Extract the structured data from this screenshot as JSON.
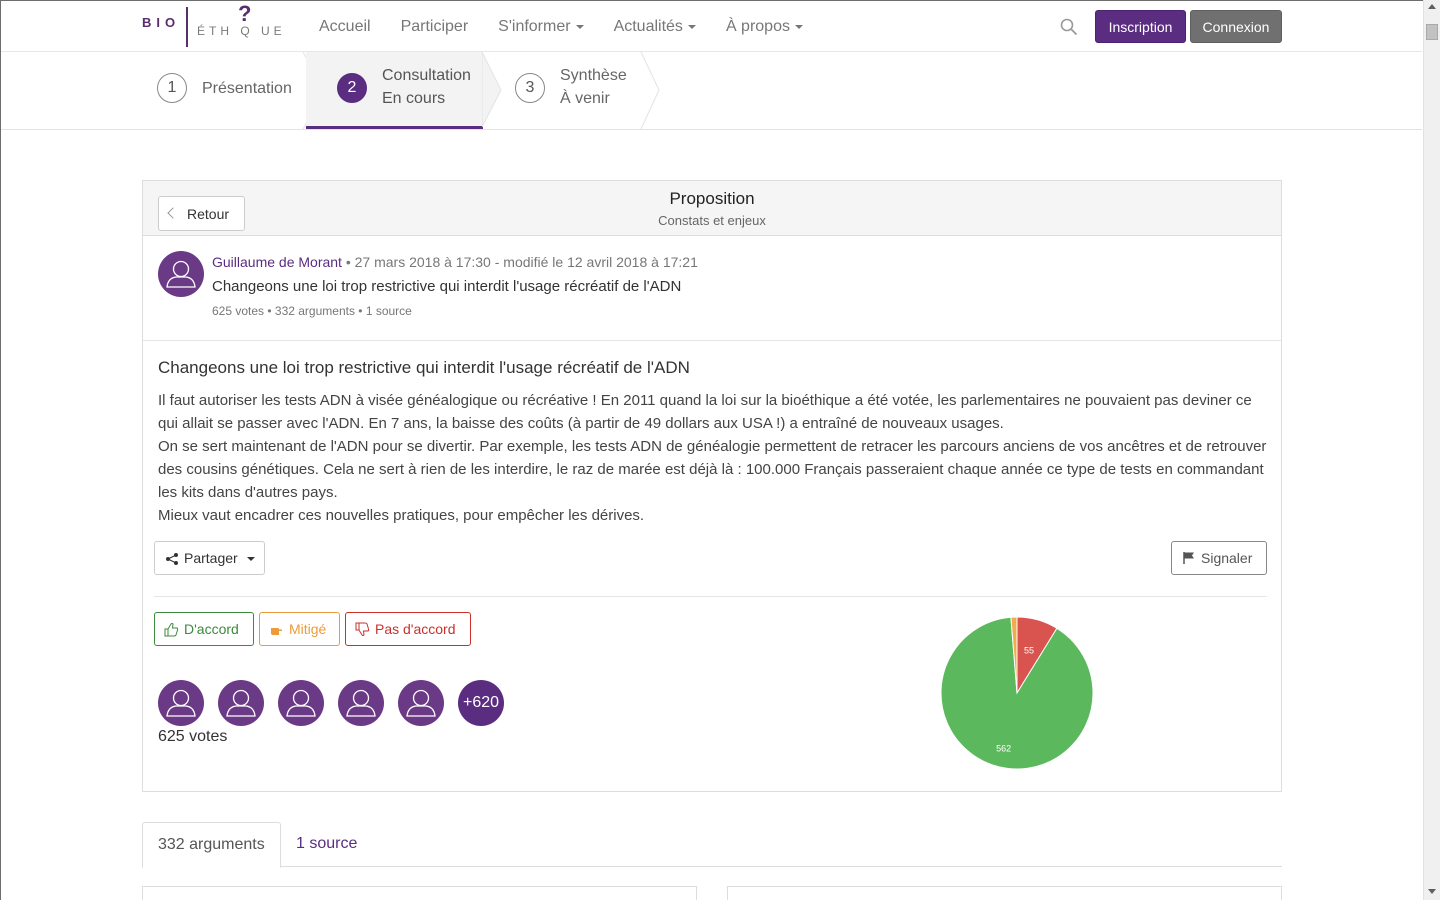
{
  "nav": {
    "logo_left": "BIO",
    "logo_right": "ÉTH Q UE",
    "logo_mark": "?",
    "links": [
      {
        "label": "Accueil",
        "dropdown": false
      },
      {
        "label": "Participer",
        "dropdown": false
      },
      {
        "label": "S'informer",
        "dropdown": true
      },
      {
        "label": "Actualités",
        "dropdown": true
      },
      {
        "label": "À propos",
        "dropdown": true
      }
    ],
    "inscription_label": "Inscription",
    "connexion_label": "Connexion"
  },
  "steps": [
    {
      "number": "1",
      "label": "Présentation",
      "status": ""
    },
    {
      "number": "2",
      "label": "Consultation",
      "status": "En cours"
    },
    {
      "number": "3",
      "label": "Synthèse",
      "status": "À venir"
    }
  ],
  "panel": {
    "back_label": "Retour",
    "title": "Proposition",
    "subtitle": "Constats et enjeux"
  },
  "author": {
    "name": "Guillaume de Morant",
    "meta": " • 27 mars 2018 à 17:30 - modifié le 12 avril 2018 à 17:21",
    "title": "Changeons une loi trop restrictive qui interdit l'usage récréatif de l'ADN",
    "stats": "625 votes • 332 arguments • 1 source"
  },
  "proposal": {
    "title": "Changeons une loi trop restrictive qui interdit l'usage récréatif de l'ADN",
    "paragraphs": [
      "Il faut autoriser les tests ADN à visée généalogique ou récréative ! En 2011 quand la loi sur la bioéthique a été votée, les parlementaires ne pouvaient pas deviner ce qui allait se passer avec l'ADN. En 7 ans, la baisse des coûts (à partir de 49 dollars aux USA !) a entraîné de nouveaux usages.",
      "On se sert maintenant de l'ADN pour se divertir. Par exemple, les tests ADN de généalogie permettent de retracer les parcours anciens de vos ancêtres et de retrouver des cousins génétiques. Cela ne sert à rien de les interdire, le raz de marée est déjà là : 100.000 Français passeraient chaque année ce type de tests en commandant les kits dans d'autres pays.",
      "Mieux vaut encadrer ces nouvelles pratiques, pour empêcher les dérives."
    ],
    "share_label": "Partager",
    "report_label": "Signaler"
  },
  "votes": {
    "agree_label": "D'accord",
    "mixed_label": "Mitigé",
    "disagree_label": "Pas d'accord",
    "more_voters": "+620",
    "count_label": "625 votes",
    "colors": {
      "agree": "#5cb85c",
      "mixed": "#f0ad4e",
      "disagree": "#d9534f"
    }
  },
  "chart_data": {
    "type": "pie",
    "slices": [
      {
        "label": "D'accord",
        "value": 562,
        "color": "#5cb85c",
        "data_label": "562"
      },
      {
        "label": "Mitigé",
        "value": 8,
        "color": "#f0ad4e",
        "data_label": ""
      },
      {
        "label": "Pas d'accord",
        "value": 55,
        "color": "#d9534f",
        "data_label": "55"
      }
    ]
  },
  "tabs": [
    {
      "label": "332 arguments",
      "active": true
    },
    {
      "label": "1 source",
      "active": false
    }
  ]
}
